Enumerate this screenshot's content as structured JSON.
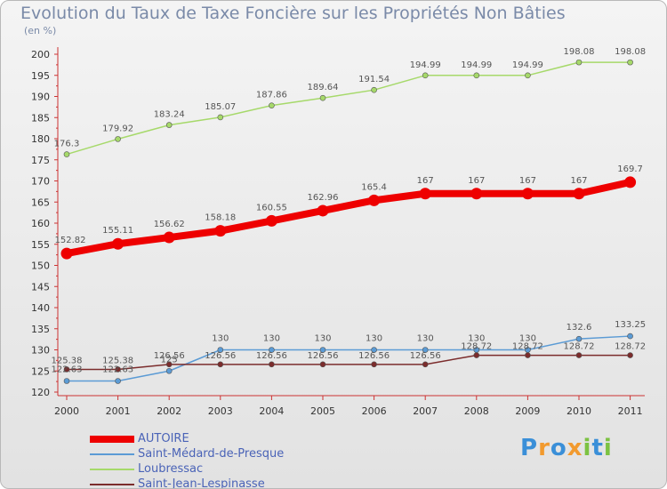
{
  "chart_data": {
    "type": "line",
    "title": "Evolution du Taux de Taxe Foncière sur les Propriétés Non Bâties",
    "ylabel": "(en %)",
    "xlabel": "",
    "categories": [
      "2000",
      "2001",
      "2002",
      "2003",
      "2004",
      "2005",
      "2006",
      "2007",
      "2008",
      "2009",
      "2010",
      "2011"
    ],
    "ylim": [
      120,
      200
    ],
    "yticks": [
      120,
      125,
      130,
      135,
      140,
      145,
      150,
      155,
      160,
      165,
      170,
      175,
      180,
      185,
      190,
      195,
      200
    ],
    "grid": false,
    "series": [
      {
        "name": "AUTOIRE",
        "color": "#ee0000",
        "values": [
          152.82,
          155.11,
          156.62,
          158.18,
          160.55,
          162.96,
          165.4,
          167,
          167,
          167,
          167,
          169.7
        ],
        "labels": [
          "152.82",
          "155.11",
          "156.62",
          "158.18",
          "160.55",
          "162.96",
          "165.4",
          "167",
          "167",
          "167",
          "167",
          "169.7"
        ]
      },
      {
        "name": "Saint-Médard-de-Presque",
        "color": "#5b9bd5",
        "values": [
          122.63,
          122.63,
          125,
          130,
          130,
          130,
          130,
          130,
          130,
          130,
          132.6,
          133.25
        ],
        "labels": [
          "122.63",
          "122.63",
          "125",
          "130",
          "130",
          "130",
          "130",
          "130",
          "130",
          "130",
          "132.6",
          "133.25"
        ]
      },
      {
        "name": "Loubressac",
        "color": "#a6d96a",
        "values": [
          176.3,
          179.92,
          183.24,
          185.07,
          187.86,
          189.64,
          191.54,
          194.99,
          194.99,
          194.99,
          198.08,
          198.08
        ],
        "labels": [
          "176.3",
          "179.92",
          "183.24",
          "185.07",
          "187.86",
          "189.64",
          "191.54",
          "194.99",
          "194.99",
          "194.99",
          "198.08",
          "198.08"
        ]
      },
      {
        "name": "Saint-Jean-Lespinasse",
        "color": "#7b2c2c",
        "values": [
          125.38,
          125.38,
          126.56,
          126.56,
          126.56,
          126.56,
          126.56,
          126.56,
          128.72,
          128.72,
          128.72,
          128.72
        ],
        "labels": [
          "125.38",
          "125.38",
          "126.56",
          "126.56",
          "126.56",
          "126.56",
          "126.56",
          "126.56",
          "128.72",
          "128.72",
          "128.72",
          "128.72"
        ]
      }
    ]
  },
  "logo": {
    "letters": [
      "P",
      "r",
      "o",
      "x",
      "i",
      "t",
      "i"
    ],
    "colors": [
      "#3a8fd8",
      "#f29a2e",
      "#3a8fd8",
      "#f29a2e",
      "#7cc242",
      "#3a8fd8",
      "#7cc242"
    ]
  }
}
